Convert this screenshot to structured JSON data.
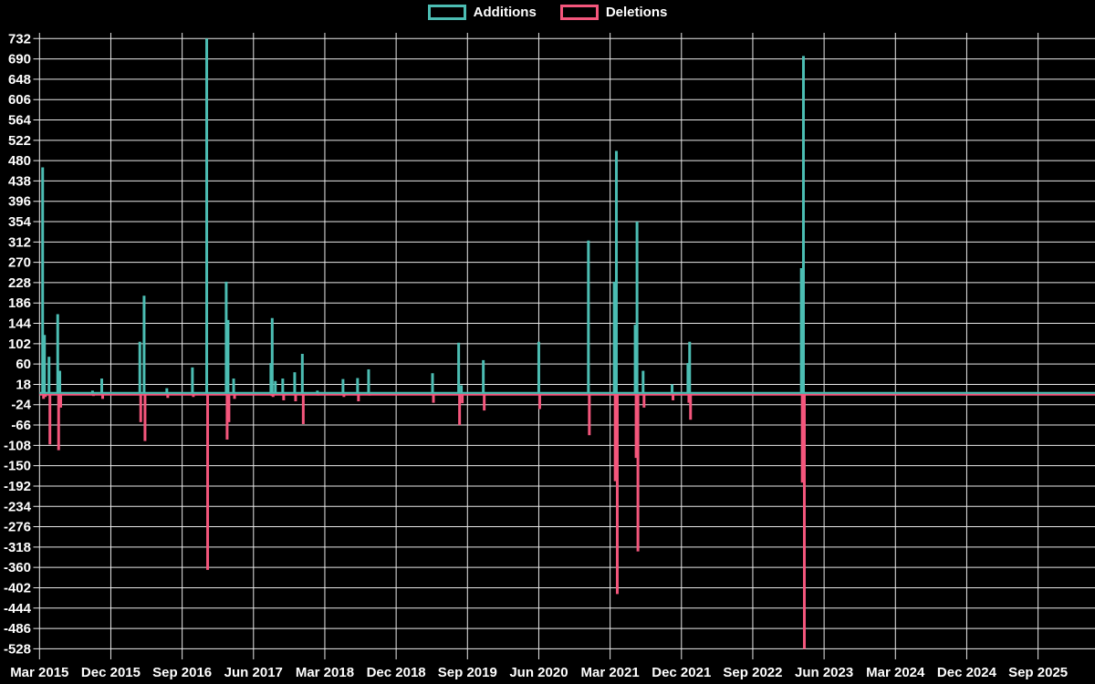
{
  "chart_data": {
    "type": "line",
    "title": "",
    "description": "Weekly code additions and deletions spike chart on black background",
    "background_color": "#000000",
    "grid": "on",
    "gridline_color": "#e9e9e9",
    "legend_position": "top-center",
    "legend": [
      {
        "label": "Additions",
        "color": "#4cbdb3"
      },
      {
        "label": "Deletions",
        "color": "#f4567c"
      }
    ],
    "y_axis": {
      "min": -528,
      "max": 732,
      "tick_step": 42,
      "ticks": [
        732,
        690,
        648,
        606,
        564,
        522,
        480,
        438,
        396,
        354,
        312,
        270,
        228,
        186,
        144,
        102,
        60,
        18,
        -24,
        -66,
        -108,
        -150,
        -192,
        -234,
        -276,
        -318,
        -360,
        -402,
        -444,
        -486,
        -528
      ]
    },
    "x_axis": {
      "start": "2015-03",
      "end": "2025-09",
      "tick_interval_months": 9,
      "tick_labels": [
        "Mar 2015",
        "Dec 2015",
        "Sep 2016",
        "Jun 2017",
        "Mar 2018",
        "Dec 2018",
        "Sep 2019",
        "Jun 2020",
        "Mar 2021",
        "Dec 2021",
        "Sep 2022",
        "Jun 2023",
        "Mar 2024",
        "Dec 2024",
        "Sep 2025"
      ]
    },
    "series": [
      {
        "date": "2015-03-13",
        "additions": 466,
        "deletions": 12
      },
      {
        "date": "2015-03-20",
        "additions": 120,
        "deletions": 8
      },
      {
        "date": "2015-04-07",
        "additions": 75,
        "deletions": 106
      },
      {
        "date": "2015-05-10",
        "additions": 163,
        "deletions": 118
      },
      {
        "date": "2015-05-18",
        "additions": 46,
        "deletions": 30
      },
      {
        "date": "2015-09-22",
        "additions": 5,
        "deletions": 6
      },
      {
        "date": "2015-10-27",
        "additions": 30,
        "deletions": 12
      },
      {
        "date": "2016-03-21",
        "additions": 106,
        "deletions": 60
      },
      {
        "date": "2016-04-07",
        "additions": 201,
        "deletions": 99
      },
      {
        "date": "2016-07-03",
        "additions": 10,
        "deletions": 10
      },
      {
        "date": "2016-10-10",
        "additions": 53,
        "deletions": 8
      },
      {
        "date": "2016-12-04",
        "additions": 732,
        "deletions": 365
      },
      {
        "date": "2017-02-18",
        "additions": 230,
        "deletions": 96
      },
      {
        "date": "2017-02-25",
        "additions": 151,
        "deletions": 60
      },
      {
        "date": "2017-03-16",
        "additions": 30,
        "deletions": 12
      },
      {
        "date": "2017-08-07",
        "additions": 62,
        "deletions": 6
      },
      {
        "date": "2017-08-12",
        "additions": 155,
        "deletions": 8
      },
      {
        "date": "2017-08-24",
        "additions": 25,
        "deletions": 4
      },
      {
        "date": "2017-09-22",
        "additions": 30,
        "deletions": 15
      },
      {
        "date": "2017-11-07",
        "additions": 43,
        "deletions": 17
      },
      {
        "date": "2017-12-06",
        "additions": 81,
        "deletions": 64
      },
      {
        "date": "2018-02-03",
        "additions": 5,
        "deletions": 5
      },
      {
        "date": "2018-05-10",
        "additions": 29,
        "deletions": 8
      },
      {
        "date": "2018-07-05",
        "additions": 31,
        "deletions": 17
      },
      {
        "date": "2018-08-17",
        "additions": 49,
        "deletions": 5
      },
      {
        "date": "2019-04-19",
        "additions": 41,
        "deletions": 20
      },
      {
        "date": "2019-07-28",
        "additions": 104,
        "deletions": 66
      },
      {
        "date": "2019-08-08",
        "additions": 16,
        "deletions": 21
      },
      {
        "date": "2019-11-01",
        "additions": 68,
        "deletions": 36
      },
      {
        "date": "2020-06-01",
        "additions": 106,
        "deletions": 33
      },
      {
        "date": "2020-12-09",
        "additions": 315,
        "deletions": 87
      },
      {
        "date": "2021-03-17",
        "additions": 230,
        "deletions": 182
      },
      {
        "date": "2021-03-25",
        "additions": 500,
        "deletions": 415
      },
      {
        "date": "2021-06-06",
        "additions": 141,
        "deletions": 134
      },
      {
        "date": "2021-06-13",
        "additions": 354,
        "deletions": 327
      },
      {
        "date": "2021-07-06",
        "additions": 46,
        "deletions": 30
      },
      {
        "date": "2021-10-26",
        "additions": 18,
        "deletions": 15
      },
      {
        "date": "2021-12-26",
        "additions": 62,
        "deletions": 20
      },
      {
        "date": "2022-01-02",
        "additions": 106,
        "deletions": 55
      },
      {
        "date": "2023-03-05",
        "additions": 258,
        "deletions": 185
      },
      {
        "date": "2023-03-13",
        "additions": 696,
        "deletions": 528
      }
    ]
  }
}
